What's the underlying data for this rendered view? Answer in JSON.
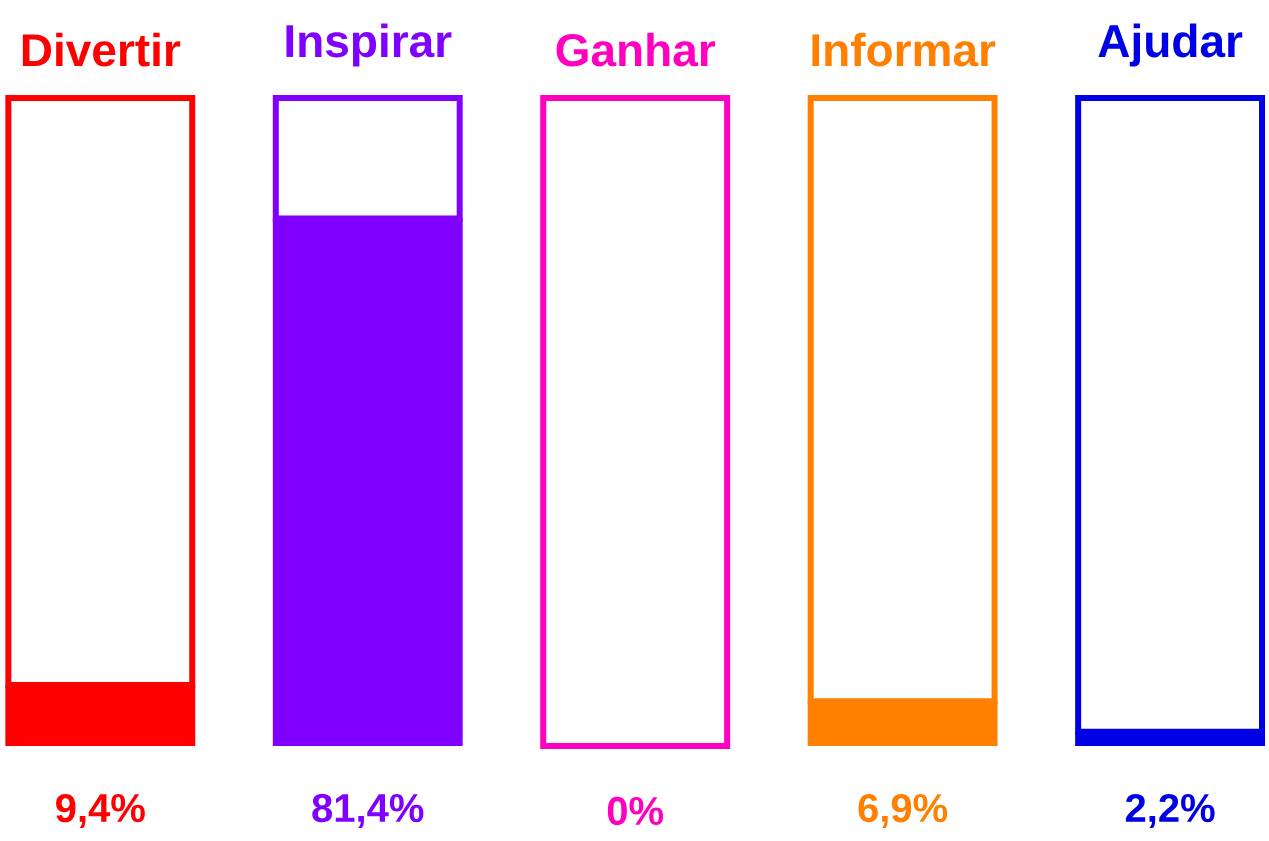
{
  "chart_data": {
    "type": "bar",
    "categories": [
      "Divertir",
      "Inspirar",
      "Ganhar",
      "Informar",
      "Ajudar"
    ],
    "stacked": true,
    "series": [
      {
        "values": [
          9.4,
          81.4,
          0,
          6.9,
          2.2
        ],
        "colors": [
          "#ff0000",
          "#8000ff",
          "#ff00c0",
          "#ff8000",
          "#0000e6"
        ],
        "value_labels": [
          "9,4%",
          "81,4%",
          "0%",
          "6,9%",
          "2,2%"
        ]
      },
      {
        "values": [
          90.6,
          18.6,
          100,
          93.1,
          97.8
        ],
        "colors": [
          "#ff0000",
          "#8000ff",
          "#ff00c0",
          "#ff8000",
          "#0000e6"
        ]
      }
    ],
    "ylim": [
      0,
      100
    ]
  }
}
